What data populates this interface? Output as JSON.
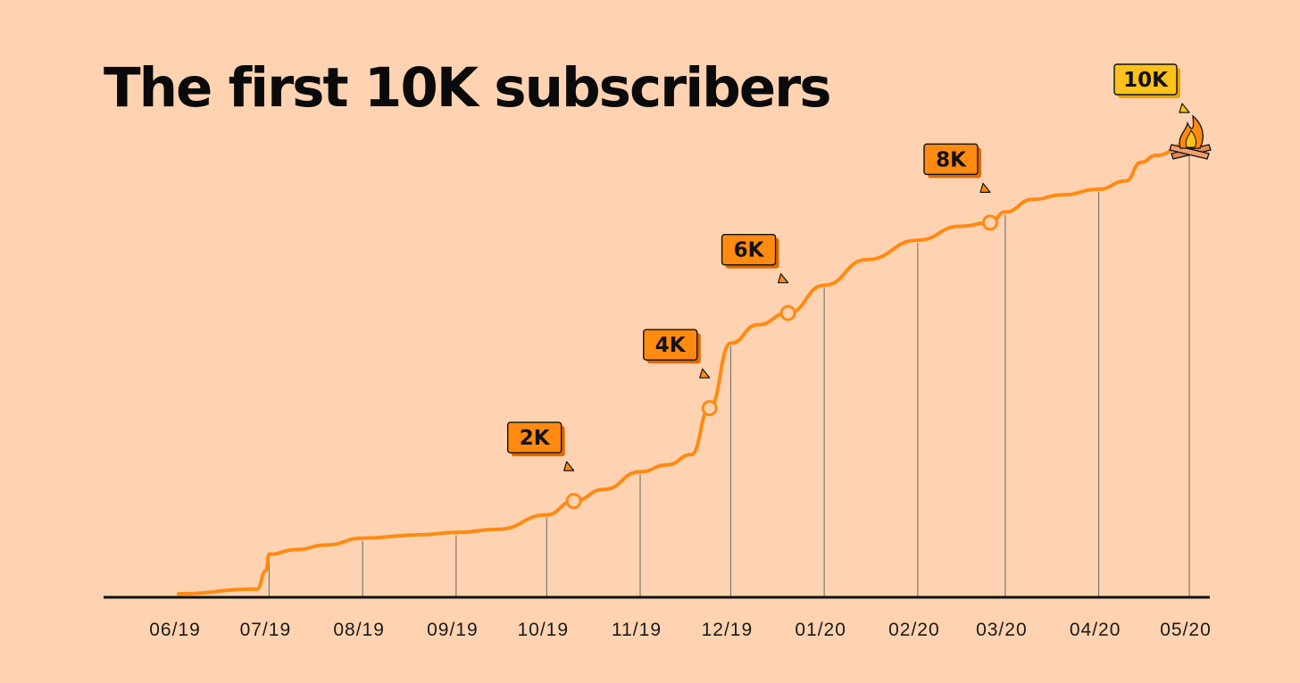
{
  "chart_data": {
    "type": "line",
    "title": "The first 10K subscribers",
    "xlabel": "",
    "ylabel": "",
    "x_ticks": [
      "06/19",
      "07/19",
      "08/19",
      "09/19",
      "10/19",
      "11/19",
      "12/19",
      "01/20",
      "02/20",
      "03/20",
      "04/20",
      "05/20"
    ],
    "ylim": [
      0,
      10000
    ],
    "grid": "vertical lines from each month tick up to the line",
    "legend": "none",
    "series": [
      {
        "x": [
          "2019-06-01",
          "2019-06-27",
          "2019-06-30",
          "2019-07-01",
          "2019-07-10",
          "2019-07-20",
          "2019-08-01",
          "2019-08-20",
          "2019-09-01",
          "2019-09-15",
          "2019-10-01",
          "2019-10-10",
          "2019-10-20",
          "2019-11-01",
          "2019-11-10",
          "2019-11-18",
          "2019-11-24",
          "2019-12-01",
          "2019-12-10",
          "2019-12-20",
          "2020-01-01",
          "2020-01-15",
          "2020-02-01",
          "2020-02-15",
          "2020-02-25",
          "2020-03-01",
          "2020-03-10",
          "2020-03-20",
          "2020-04-01",
          "2020-04-10",
          "2020-04-15",
          "2020-04-20",
          "2020-05-01"
        ],
        "values": [
          0,
          100,
          500,
          850,
          950,
          1050,
          1200,
          1270,
          1320,
          1390,
          1700,
          2000,
          2250,
          2630,
          2780,
          3000,
          4000,
          5400,
          5800,
          6050,
          6650,
          7200,
          7620,
          7920,
          8000,
          8230,
          8500,
          8600,
          8720,
          8900,
          9300,
          9450,
          9720
        ]
      }
    ],
    "milestones": [
      {
        "label": "2K",
        "date": "2019-10-10",
        "value": 2000
      },
      {
        "label": "4K",
        "date": "2019-11-24",
        "value": 4000
      },
      {
        "label": "6K",
        "date": "2019-12-20",
        "value": 6050
      },
      {
        "label": "8K",
        "date": "2020-02-25",
        "value": 8000
      },
      {
        "label": "10K",
        "date": "2020-05-01",
        "value": 9720
      }
    ],
    "colors": {
      "background": "#FFD3B1",
      "line": "#FF8A12",
      "badge": "#FF8A12",
      "badge_final": "#FFC21A",
      "axis": "#111111",
      "gridline": "#666666"
    },
    "final_marker_icon": "campfire-icon"
  }
}
